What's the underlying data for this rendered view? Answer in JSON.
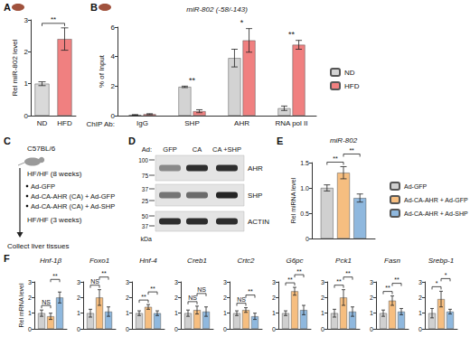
{
  "chart_data": [
    {
      "panel_label": "A",
      "type": "bar",
      "ylabel": "Rel miR-802 level",
      "categories": [
        "ND",
        "HFD"
      ],
      "values": [
        1.0,
        2.4
      ],
      "errors": [
        0.06,
        0.35
      ],
      "colors": [
        "#d9d9d9",
        "#f08080"
      ],
      "ylim": [
        0,
        3
      ],
      "yticks": [
        0,
        1,
        2,
        3
      ],
      "grid": false,
      "annotations": [
        {
          "text": "**",
          "from": 0,
          "to": 1
        }
      ]
    },
    {
      "panel_label": "B",
      "type": "bar",
      "title": "miR-802 (-58/-143)",
      "xlabel": "ChIP Ab:",
      "ylabel": "% of Input",
      "categories": [
        "IgG",
        "SHP",
        "AHR",
        "RNA pol II"
      ],
      "series": [
        {
          "name": "ND",
          "color": "#d3d3d3",
          "values": [
            0.05,
            1.95,
            3.9,
            0.5
          ],
          "errors": [
            0.02,
            0.05,
            0.6,
            0.15
          ]
        },
        {
          "name": "HFD",
          "color": "#f08080",
          "values": [
            0.1,
            0.3,
            5.1,
            4.8
          ],
          "errors": [
            0.03,
            0.1,
            0.8,
            0.3
          ]
        }
      ],
      "ylim": [
        0,
        6
      ],
      "yticks": [
        0,
        2,
        4,
        6
      ],
      "grid": false,
      "legend": "right",
      "annotations": [
        {
          "text": "**",
          "category": 1
        },
        {
          "text": "*",
          "category": 2
        },
        {
          "text": "**",
          "category": 3
        }
      ]
    },
    {
      "panel_label": "E",
      "type": "bar",
      "title": "miR-802",
      "ylabel": "Rel miRNA level",
      "categories": [
        null
      ],
      "series": [
        {
          "name": "Ad-GFP",
          "color": "#d0d0d0",
          "values": [
            1.0
          ],
          "errors": [
            0.06
          ]
        },
        {
          "name": "Ad-CA-AHR + Ad-GFP",
          "color": "#f6be80",
          "values": [
            1.3
          ],
          "errors": [
            0.12
          ]
        },
        {
          "name": "Ad-CA-AHR + Ad-SHP",
          "color": "#8fb8de",
          "values": [
            0.8
          ],
          "errors": [
            0.08
          ]
        }
      ],
      "ylim": [
        0,
        1.5
      ],
      "yticks": [
        0,
        0.5,
        {
          "value": 1,
          "label": "1.0"
        },
        1.5
      ],
      "tick_labels": "y",
      "legend": "right",
      "annotations": [
        {
          "text": "**",
          "from": 0,
          "to": 1
        },
        {
          "text": "**",
          "from": 1,
          "to": 2
        }
      ]
    },
    {
      "panel_label": "F",
      "type": "bar",
      "title": "Hnf-1β",
      "ylabel": "Rel mRNA level",
      "categories": [
        null
      ],
      "series": [
        {
          "color": "#d0d0d0",
          "values": [
            1.0
          ],
          "errors": [
            0.2
          ]
        },
        {
          "color": "#f6be80",
          "values": [
            0.8
          ],
          "errors": [
            0.2
          ]
        },
        {
          "color": "#8fb8de",
          "values": [
            2.0
          ],
          "errors": [
            0.35
          ]
        }
      ],
      "ylim": [
        0,
        3
      ],
      "yticks": [
        0,
        1,
        2,
        3
      ],
      "tick_labels": "y",
      "annotations": [
        {
          "text": "NS",
          "from": 0,
          "to": 1
        },
        {
          "text": "**",
          "from": 1,
          "to": 2
        }
      ]
    },
    {
      "type": "bar",
      "title": "Foxo1",
      "categories": [
        null
      ],
      "series": [
        {
          "color": "#d0d0d0",
          "values": [
            1.0
          ],
          "errors": [
            0.25
          ]
        },
        {
          "color": "#f6be80",
          "values": [
            2.0
          ],
          "errors": [
            0.5
          ]
        },
        {
          "color": "#8fb8de",
          "values": [
            1.1
          ],
          "errors": [
            0.3
          ]
        }
      ],
      "ylim": [
        0,
        3
      ],
      "yticks": [
        0,
        1,
        2,
        3
      ],
      "tick_labels": "y",
      "annotations": [
        {
          "text": "NS",
          "from": 0,
          "to": 1
        },
        {
          "text": "**",
          "from": 1,
          "to": 2
        }
      ]
    },
    {
      "type": "bar",
      "title": "Hnf-4",
      "categories": [
        null
      ],
      "series": [
        {
          "color": "#d0d0d0",
          "values": [
            1.0
          ],
          "errors": [
            0.15
          ]
        },
        {
          "color": "#f6be80",
          "values": [
            1.4
          ],
          "errors": [
            0.15
          ]
        },
        {
          "color": "#8fb8de",
          "values": [
            1.0
          ],
          "errors": [
            0.15
          ]
        }
      ],
      "ylim": [
        0,
        3
      ],
      "yticks": [
        0,
        1,
        2,
        3
      ],
      "tick_labels": "y",
      "annotations": [
        {
          "text": "**",
          "from": 0,
          "to": 1
        },
        {
          "text": "**",
          "from": 1,
          "to": 2
        }
      ]
    },
    {
      "type": "bar",
      "title": "Creb1",
      "categories": [
        null
      ],
      "series": [
        {
          "color": "#d0d0d0",
          "values": [
            1.0
          ],
          "errors": [
            0.2
          ]
        },
        {
          "color": "#f6be80",
          "values": [
            1.2
          ],
          "errors": [
            0.25
          ]
        },
        {
          "color": "#8fb8de",
          "values": [
            1.1
          ],
          "errors": [
            0.3
          ]
        }
      ],
      "ylim": [
        0,
        3
      ],
      "yticks": [
        0,
        1,
        2,
        3
      ],
      "tick_labels": "y",
      "annotations": [
        {
          "text": "NS",
          "from": 0,
          "to": 1
        },
        {
          "text": "NS",
          "from": 1,
          "to": 2
        }
      ]
    },
    {
      "type": "bar",
      "title": "Crtc2",
      "categories": [
        null
      ],
      "series": [
        {
          "color": "#d0d0d0",
          "values": [
            1.0
          ],
          "errors": [
            0.15
          ]
        },
        {
          "color": "#f6be80",
          "values": [
            1.2
          ],
          "errors": [
            0.15
          ]
        },
        {
          "color": "#8fb8de",
          "values": [
            0.8
          ],
          "errors": [
            0.2
          ]
        }
      ],
      "ylim": [
        0,
        3
      ],
      "yticks": [
        0,
        1,
        2,
        3
      ],
      "tick_labels": "y",
      "annotations": [
        {
          "text": "NS",
          "from": 0,
          "to": 1
        },
        {
          "text": "**",
          "from": 1,
          "to": 2
        }
      ]
    },
    {
      "type": "bar",
      "title": "G6pc",
      "categories": [
        null
      ],
      "series": [
        {
          "color": "#d0d0d0",
          "values": [
            1.0
          ],
          "errors": [
            0.15
          ]
        },
        {
          "color": "#f6be80",
          "values": [
            2.4
          ],
          "errors": [
            0.25
          ]
        },
        {
          "color": "#8fb8de",
          "values": [
            1.2
          ],
          "errors": [
            0.3
          ]
        }
      ],
      "ylim": [
        0,
        3
      ],
      "yticks": [
        0,
        1,
        2,
        3
      ],
      "tick_labels": "y",
      "annotations": [
        {
          "text": "**",
          "from": 0,
          "to": 1
        },
        {
          "text": "**",
          "from": 1,
          "to": 2
        }
      ]
    },
    {
      "type": "bar",
      "title": "Pck1",
      "categories": [
        null
      ],
      "series": [
        {
          "color": "#d0d0d0",
          "values": [
            1.0
          ],
          "errors": [
            0.25
          ]
        },
        {
          "color": "#f6be80",
          "values": [
            2.0
          ],
          "errors": [
            0.5
          ]
        },
        {
          "color": "#8fb8de",
          "values": [
            1.1
          ],
          "errors": [
            0.3
          ]
        }
      ],
      "ylim": [
        0,
        3
      ],
      "yticks": [
        0,
        1,
        2,
        3
      ],
      "tick_labels": "y",
      "annotations": [
        {
          "text": "**",
          "from": 0,
          "to": 1
        },
        {
          "text": "**",
          "from": 1,
          "to": 2
        }
      ]
    },
    {
      "type": "bar",
      "title": "Fasn",
      "categories": [
        null
      ],
      "series": [
        {
          "color": "#d0d0d0",
          "values": [
            1.0
          ],
          "errors": [
            0.2
          ]
        },
        {
          "color": "#f6be80",
          "values": [
            1.8
          ],
          "errors": [
            0.3
          ]
        },
        {
          "color": "#8fb8de",
          "values": [
            1.1
          ],
          "errors": [
            0.2
          ]
        }
      ],
      "ylim": [
        0,
        3
      ],
      "yticks": [
        0,
        1,
        2,
        3
      ],
      "tick_labels": "y",
      "annotations": [
        {
          "text": "**",
          "from": 0,
          "to": 1
        },
        {
          "text": "**",
          "from": 1,
          "to": 2
        }
      ]
    },
    {
      "type": "bar",
      "title": "Srebp-1",
      "categories": [
        null
      ],
      "series": [
        {
          "color": "#d0d0d0",
          "values": [
            1.0
          ],
          "errors": [
            0.3
          ]
        },
        {
          "color": "#f6be80",
          "values": [
            1.9
          ],
          "errors": [
            0.5
          ]
        },
        {
          "color": "#8fb8de",
          "values": [
            1.1
          ],
          "errors": [
            0.15
          ]
        }
      ],
      "ylim": [
        0,
        3
      ],
      "yticks": [
        0,
        1,
        2,
        3
      ],
      "tick_labels": "y",
      "annotations": [
        {
          "text": "*",
          "from": 0,
          "to": 1
        },
        {
          "text": "*",
          "from": 1,
          "to": 2
        }
      ]
    }
  ],
  "diagram": {
    "panel_label": "C",
    "strain": "C57BL/6",
    "diet_before": "HF/HF (8 weeks)",
    "groups": [
      "Ad-GFP",
      "Ad-CA-AHR (CA) + Ad-GFP",
      "Ad-CA-AHR (CA) + Ad-SHP"
    ],
    "diet_after": "HF/HF (3 weeks)",
    "endpoint": "Collect liver tissues"
  },
  "blot": {
    "panel_label": "D",
    "lane_title": "Ad:",
    "lanes": [
      "GFP",
      "CA",
      "CA +SHP"
    ],
    "rows": [
      {
        "label": "AHR",
        "markers": [
          100,
          75
        ]
      },
      {
        "label": "SHP",
        "markers": [
          37,
          25
        ]
      },
      {
        "label": "ACTIN",
        "markers": [
          50,
          37
        ]
      }
    ],
    "unit": "kDa"
  }
}
